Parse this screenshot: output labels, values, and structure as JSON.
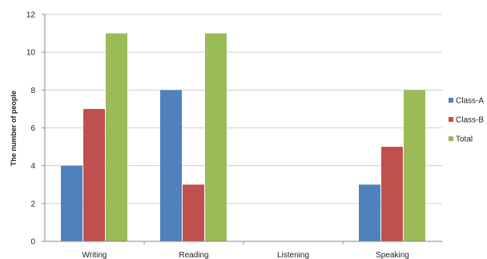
{
  "chart_data": {
    "type": "bar",
    "title": "",
    "xlabel": "",
    "ylabel": "The number of people",
    "categories": [
      "Writing",
      "Reading",
      "Listening",
      "Speaking"
    ],
    "series": [
      {
        "name": "Class-A",
        "values": [
          4,
          8,
          0,
          3
        ],
        "color": "#4f81bd"
      },
      {
        "name": "Class-B",
        "values": [
          7,
          3,
          0,
          5
        ],
        "color": "#c0504d"
      },
      {
        "name": "Total",
        "values": [
          11,
          11,
          0,
          8
        ],
        "color": "#9bbb59"
      }
    ],
    "ylim": [
      0,
      12
    ],
    "yticks": [
      0,
      2,
      4,
      6,
      8,
      10,
      12
    ],
    "grid": true,
    "legend_position": "right"
  }
}
